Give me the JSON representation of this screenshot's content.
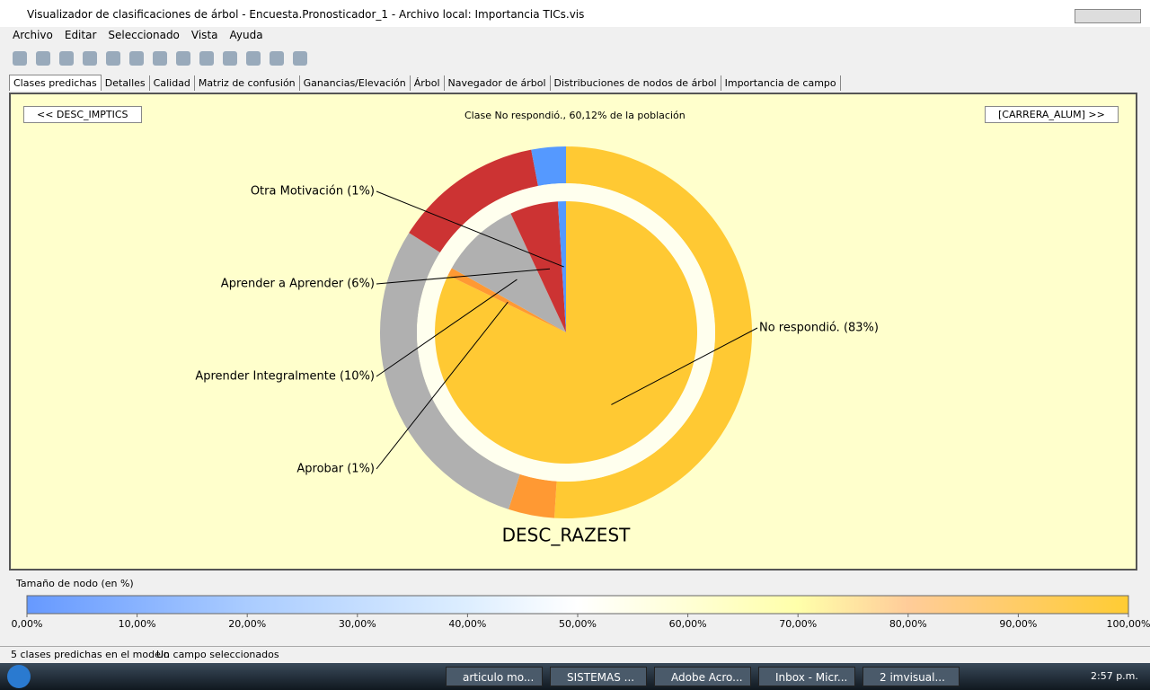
{
  "window": {
    "title": "Visualizador de clasificaciones de árbol - Encuesta.Pronosticador_1 - Archivo local: Importancia TICs.vis"
  },
  "menu": [
    "Archivo",
    "Editar",
    "Seleccionado",
    "Vista",
    "Ayuda"
  ],
  "tabs": [
    "Clases predichas",
    "Detalles",
    "Calidad",
    "Matriz de confusión",
    "Ganancias/Elevación",
    "Árbol",
    "Navegador de árbol",
    "Distribuciones de nodos de árbol",
    "Importancia de campo"
  ],
  "nav": {
    "prev": "<< DESC_IMPTICS",
    "next": "[CARRERA_ALUM] >>",
    "header": "Clase No respondió., 60,12% de la población"
  },
  "chart_data": {
    "type": "pie",
    "node_label": "DESC_RAZEST",
    "slices": [
      {
        "label": "No respondió. (83%)",
        "value": 83,
        "outer": 51,
        "color": "#ffc933"
      },
      {
        "label": "Aprobar (1%)",
        "value": 1,
        "outer": 4,
        "color": "#ff9933"
      },
      {
        "label": "Aprender Integralmente (10%)",
        "value": 10,
        "outer": 29,
        "color": "#b0b0b0"
      },
      {
        "label": "Aprender a Aprender (6%)",
        "value": 6,
        "outer": 13,
        "color": "#cc3333"
      },
      {
        "label": "Otra Motivación (1%)",
        "value": 1,
        "outer": 3,
        "color": "#5599ff"
      }
    ]
  },
  "legend": {
    "title": "Tamaño de nodo (en %)",
    "xlim": [
      0,
      100
    ],
    "xticks": [
      {
        "value": 0,
        "label": "0,00%"
      },
      {
        "value": 10,
        "label": "10,00%"
      },
      {
        "value": 20,
        "label": "20,00%"
      },
      {
        "value": 30,
        "label": "30,00%"
      },
      {
        "value": 40,
        "label": "40,00%"
      },
      {
        "value": 50,
        "label": "50,00%"
      },
      {
        "value": 60,
        "label": "60,00%"
      },
      {
        "value": 70,
        "label": "70,00%"
      },
      {
        "value": 80,
        "label": "80,00%"
      },
      {
        "value": 90,
        "label": "90,00%"
      },
      {
        "value": 100,
        "label": "100,00%"
      }
    ]
  },
  "status": [
    "5 clases predichas en el modelo",
    "Un campo seleccionados"
  ],
  "taskbar": {
    "items": [
      "articulo mo...",
      "SISTEMAS ...",
      "Adobe Acro...",
      "Inbox - Micr...",
      "2 imvisual..."
    ],
    "clock": "2:57 p.m."
  }
}
